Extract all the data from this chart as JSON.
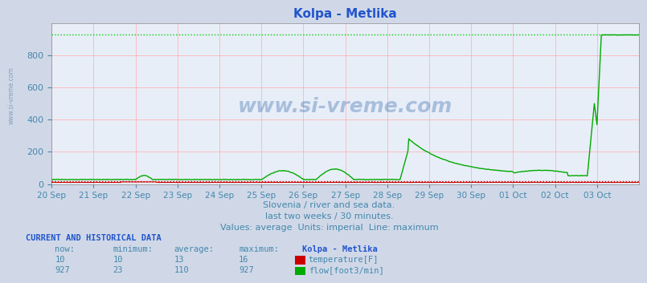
{
  "title": "Kolpa - Metlika",
  "background_color": "#d0d8e8",
  "plot_bg_color": "#e8eef8",
  "grid_color": "#ffaaaa",
  "xlabel_color": "#4488aa",
  "ylabel_color": "#4488aa",
  "title_color": "#2255cc",
  "subtitle_lines": [
    "Slovenia / river and sea data.",
    "last two weeks / 30 minutes.",
    "Values: average  Units: imperial  Line: maximum"
  ],
  "subtitle_color": "#4488aa",
  "watermark": "www.si-vreme.com",
  "watermark_color": "#3366aa",
  "x_labels": [
    "20 Sep",
    "21 Sep",
    "22 Sep",
    "23 Sep",
    "24 Sep",
    "25 Sep",
    "26 Sep",
    "27 Sep",
    "28 Sep",
    "29 Sep",
    "30 Sep",
    "01 Oct",
    "02 Oct",
    "03 Oct"
  ],
  "y_min": 0,
  "y_max": 1000,
  "y_ticks": [
    0,
    200,
    400,
    600,
    800
  ],
  "max_line_value": 927,
  "max_line_color": "#00cc00",
  "temp_max_value": 16,
  "temp_max_color": "#cc0000",
  "temp_color": "#cc0000",
  "flow_color": "#00aa00",
  "table_header_color": "#2255cc",
  "table_label_color": "#4488aa",
  "table_value_color": "#4488aa",
  "table_title_color": "#2255cc",
  "temp_now": 10,
  "temp_min": 10,
  "temp_avg": 13,
  "temp_max": 16,
  "flow_now": 927,
  "flow_min": 23,
  "flow_avg": 110,
  "flow_max": 927,
  "temp_color_box": "#cc0000",
  "flow_color_box": "#00aa00"
}
